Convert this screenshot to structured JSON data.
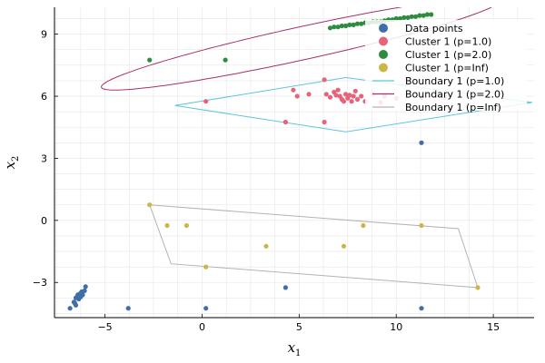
{
  "chart_data": {
    "type": "scatter",
    "title": "",
    "xlabel": "x",
    "xlabel_sub": "1",
    "ylabel": "x",
    "ylabel_sub": "2",
    "xlim": [
      -7.6,
      17.1
    ],
    "ylim": [
      -4.7,
      10.3
    ],
    "x_ticks": [
      -5,
      0,
      5,
      10,
      15
    ],
    "x_tick_labels": [
      "−5",
      "0",
      "5",
      "10",
      "15"
    ],
    "y_ticks": [
      -3,
      0,
      3,
      6,
      9
    ],
    "y_tick_labels": [
      "−3",
      "0",
      "3",
      "6",
      "9"
    ],
    "grid": true,
    "legend_position": "top-right",
    "series": [
      {
        "name": "Data points",
        "kind": "scatter",
        "color": "#3e6fa8",
        "points": [
          [
            -6.8,
            -4.25
          ],
          [
            -6.6,
            -3.95
          ],
          [
            -6.5,
            -3.75
          ],
          [
            -6.4,
            -3.6
          ],
          [
            -6.3,
            -3.55
          ],
          [
            -6.25,
            -3.7
          ],
          [
            -6.2,
            -3.45
          ],
          [
            -6.35,
            -3.8
          ],
          [
            -6.45,
            -3.7
          ],
          [
            -6.15,
            -3.6
          ],
          [
            -6.05,
            -3.4
          ],
          [
            -6.0,
            -3.2
          ],
          [
            -6.5,
            -4.1
          ],
          [
            -6.55,
            -4.0
          ],
          [
            -3.8,
            -4.25
          ],
          [
            0.2,
            -4.25
          ],
          [
            4.3,
            -3.25
          ],
          [
            11.3,
            -4.25
          ],
          [
            11.3,
            3.75
          ]
        ]
      },
      {
        "name": "Cluster 1 (p=1.0)",
        "kind": "scatter",
        "color": "#e8637a",
        "points": [
          [
            0.2,
            5.75
          ],
          [
            4.3,
            4.75
          ],
          [
            4.7,
            6.3
          ],
          [
            4.9,
            6.0
          ],
          [
            5.5,
            6.1
          ],
          [
            6.3,
            6.8
          ],
          [
            6.3,
            4.75
          ],
          [
            6.4,
            6.1
          ],
          [
            6.6,
            5.95
          ],
          [
            6.8,
            6.2
          ],
          [
            6.9,
            6.05
          ],
          [
            7.0,
            6.3
          ],
          [
            7.1,
            6.0
          ],
          [
            7.2,
            5.85
          ],
          [
            7.3,
            5.75
          ],
          [
            7.4,
            6.1
          ],
          [
            7.5,
            5.9
          ],
          [
            7.6,
            6.05
          ],
          [
            7.7,
            5.75
          ],
          [
            7.8,
            6.0
          ],
          [
            7.9,
            6.25
          ],
          [
            8.0,
            5.85
          ],
          [
            8.2,
            6.0
          ],
          [
            8.4,
            5.75
          ],
          [
            8.8,
            6.1
          ],
          [
            9.2,
            5.7
          ],
          [
            9.4,
            6.0
          ],
          [
            10.0,
            5.9
          ],
          [
            11.3,
            5.95
          ],
          [
            12.5,
            5.95
          ]
        ]
      },
      {
        "name": "Cluster 1 (p=2.0)",
        "kind": "scatter",
        "color": "#2e8b40",
        "points": [
          [
            -2.7,
            7.75
          ],
          [
            1.2,
            7.75
          ],
          [
            6.6,
            9.3
          ],
          [
            6.8,
            9.35
          ],
          [
            7.0,
            9.35
          ],
          [
            7.2,
            9.4
          ],
          [
            7.4,
            9.4
          ],
          [
            7.6,
            9.45
          ],
          [
            7.8,
            9.45
          ],
          [
            8.0,
            9.5
          ],
          [
            8.2,
            9.5
          ],
          [
            8.4,
            9.55
          ],
          [
            8.6,
            9.55
          ],
          [
            8.8,
            9.6
          ],
          [
            9.0,
            9.6
          ],
          [
            9.2,
            9.6
          ],
          [
            9.4,
            9.65
          ],
          [
            9.6,
            9.7
          ],
          [
            9.8,
            9.7
          ],
          [
            10.0,
            9.75
          ],
          [
            10.2,
            9.75
          ],
          [
            10.4,
            9.8
          ],
          [
            10.6,
            9.8
          ],
          [
            10.8,
            9.85
          ],
          [
            11.0,
            9.85
          ],
          [
            11.2,
            9.9
          ],
          [
            11.4,
            9.9
          ],
          [
            11.6,
            9.95
          ],
          [
            11.8,
            9.95
          ]
        ]
      },
      {
        "name": "Cluster 1 (p=Inf)",
        "kind": "scatter",
        "color": "#cbb748",
        "points": [
          [
            -2.7,
            0.75
          ],
          [
            -1.8,
            -0.25
          ],
          [
            -0.8,
            -0.25
          ],
          [
            0.2,
            -2.25
          ],
          [
            3.3,
            -1.25
          ],
          [
            7.3,
            -1.25
          ],
          [
            8.3,
            -0.25
          ],
          [
            11.3,
            -0.25
          ],
          [
            14.2,
            -3.25
          ]
        ]
      },
      {
        "name": "Boundary 1 (p=1.0)",
        "kind": "line",
        "color": "#5bc7dc",
        "points": [
          [
            -1.4,
            5.55
          ],
          [
            7.4,
            6.9
          ],
          [
            17.0,
            5.7
          ],
          [
            7.4,
            4.28
          ],
          [
            -1.4,
            5.55
          ]
        ]
      },
      {
        "name": "Boundary 1 (p=2.0)",
        "kind": "ellipse",
        "color": "#a8306a",
        "center": [
          5.1,
          8.55
        ],
        "semi_axes": [
          10.5,
          0.8
        ],
        "angle_deg": 11.6
      },
      {
        "name": "Boundary 1 (p=Inf)",
        "kind": "line",
        "color": "#b3b3b3",
        "points": [
          [
            -2.7,
            0.75
          ],
          [
            13.2,
            -0.4
          ],
          [
            14.2,
            -3.25
          ],
          [
            -1.6,
            -2.1
          ],
          [
            -2.7,
            0.75
          ]
        ]
      }
    ]
  }
}
